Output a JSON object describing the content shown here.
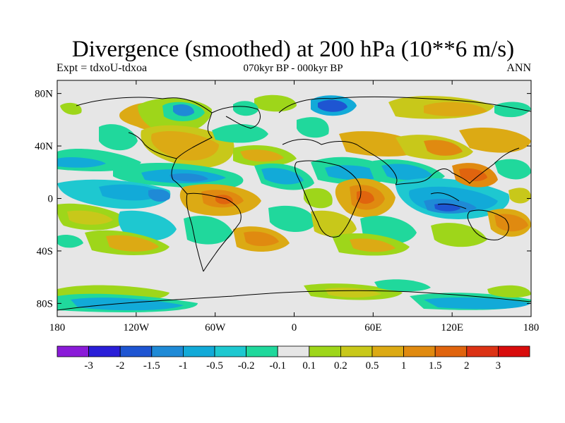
{
  "header": {
    "title": "Divergence (smoothed) at 200 hPa (10**6 m/s)",
    "experiment": "Expt = tdxoU-tdxoa",
    "period": "070kyr BP - 000kyr BP",
    "season": "ANN"
  },
  "map": {
    "projection": "cylindrical equidistant",
    "lon_range": [
      -180,
      180
    ],
    "lat_range": [
      -90,
      90
    ],
    "ocean_fill": "#e6e6e6",
    "coastline_color": "#000000"
  },
  "axes": {
    "x_ticks": [
      "180",
      "120W",
      "60W",
      "0",
      "60E",
      "120E",
      "180"
    ],
    "y_ticks": [
      "80N",
      "40N",
      "0",
      "40S",
      "80S"
    ]
  },
  "colorbar": {
    "colors": [
      "#8a1bd8",
      "#2a1ed8",
      "#1e55d2",
      "#1f8ad6",
      "#12aad8",
      "#1ec8d0",
      "#20d89c",
      "#e6e6e6",
      "#9ed61a",
      "#c8c81a",
      "#dcaa14",
      "#e08a10",
      "#e0640e",
      "#dc3214",
      "#d80c0c"
    ],
    "labels": [
      "-3",
      "-2",
      "-1.5",
      "-1",
      "-0.5",
      "-0.2",
      "-0.1",
      "0.1",
      "0.2",
      "0.5",
      "1",
      "1.5",
      "2",
      "3"
    ]
  }
}
